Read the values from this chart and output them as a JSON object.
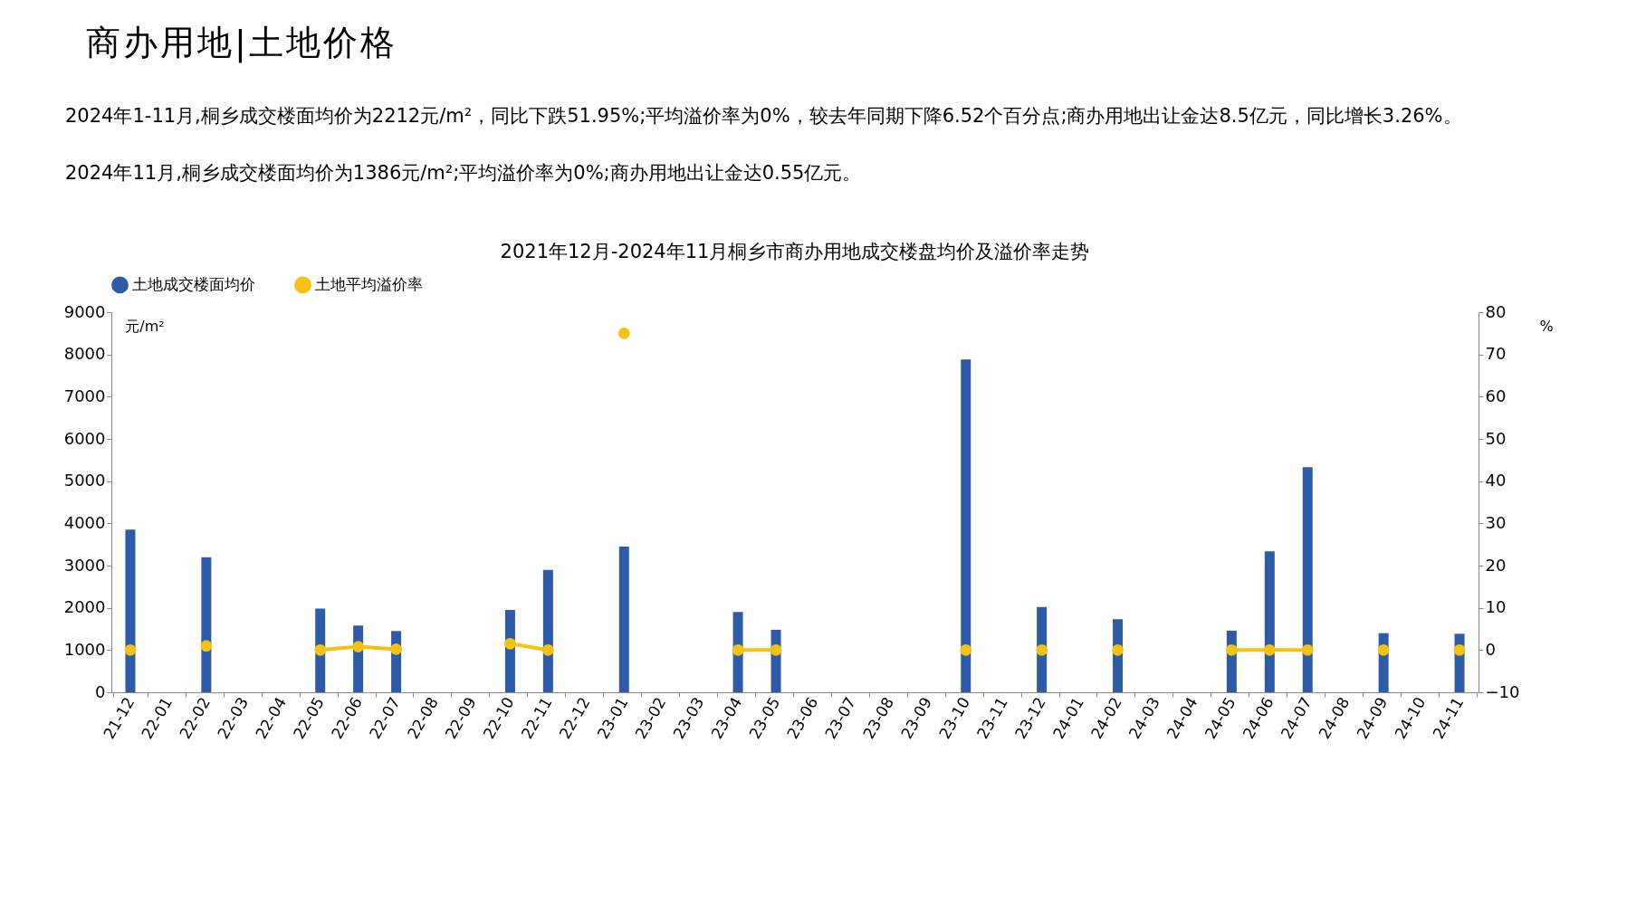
{
  "chart_data": {
    "type": "bar",
    "title": "2021年12月-2024年11月桐乡市商办用地成交楼盘均价及溢价率走势",
    "ylabel": "元/m²",
    "y2label": "%",
    "annotations": [
      "商办用地|土地价格",
      "2024年1-11月,桐乡成交楼面均价为2212元/m²，同比下跌51.95%;平均溢价率为0%，较去年同期下降6.52个百分点;商办用地出让金达8.5亿元，同比增长3.26%。",
      "2024年11月,桐乡成交楼面均价为1386元/m²;平均溢价率为0%;商办用地出让金达0.55亿元。"
    ],
    "categories": [
      "21-12",
      "22-01",
      "22-02",
      "22-03",
      "22-04",
      "22-05",
      "22-06",
      "22-07",
      "22-08",
      "22-09",
      "22-10",
      "22-11",
      "22-12",
      "23-01",
      "23-02",
      "23-03",
      "23-04",
      "23-05",
      "23-06",
      "23-07",
      "23-08",
      "23-09",
      "23-10",
      "23-11",
      "23-12",
      "24-01",
      "24-02",
      "24-03",
      "24-04",
      "24-05",
      "24-06",
      "24-07",
      "24-08",
      "24-09",
      "24-10",
      "24-11"
    ],
    "series": [
      {
        "name": "土地成交楼面均价",
        "color": "#2e5ba8",
        "values": [
          3850,
          null,
          3200,
          null,
          null,
          1980,
          1580,
          1450,
          null,
          null,
          1950,
          2900,
          null,
          3450,
          null,
          null,
          1900,
          1480,
          null,
          null,
          null,
          null,
          7880,
          null,
          2020,
          null,
          1730,
          null,
          null,
          1460,
          3340,
          5330,
          null,
          1400,
          null,
          1386
        ]
      },
      {
        "name": "土地平均溢价率",
        "type": "line",
        "axis": "y2",
        "color": "#f5c211",
        "marker": "circle",
        "line_style": "solid",
        "values": [
          0,
          null,
          1,
          null,
          null,
          0,
          0.8,
          0.2,
          null,
          null,
          1.5,
          0,
          null,
          75,
          null,
          null,
          0,
          0,
          null,
          null,
          null,
          null,
          0,
          null,
          0,
          null,
          0,
          null,
          null,
          0,
          0,
          0,
          null,
          0,
          null,
          0
        ]
      }
    ],
    "ylim": [
      0,
      9000
    ],
    "yticks": [
      0,
      1000,
      2000,
      3000,
      4000,
      5000,
      6000,
      7000,
      8000,
      9000
    ],
    "y2lim": [
      -10,
      80
    ],
    "y2ticks": [
      -10,
      0,
      10,
      20,
      30,
      40,
      50,
      60,
      70,
      80
    ],
    "legend": "top",
    "grid": false
  }
}
